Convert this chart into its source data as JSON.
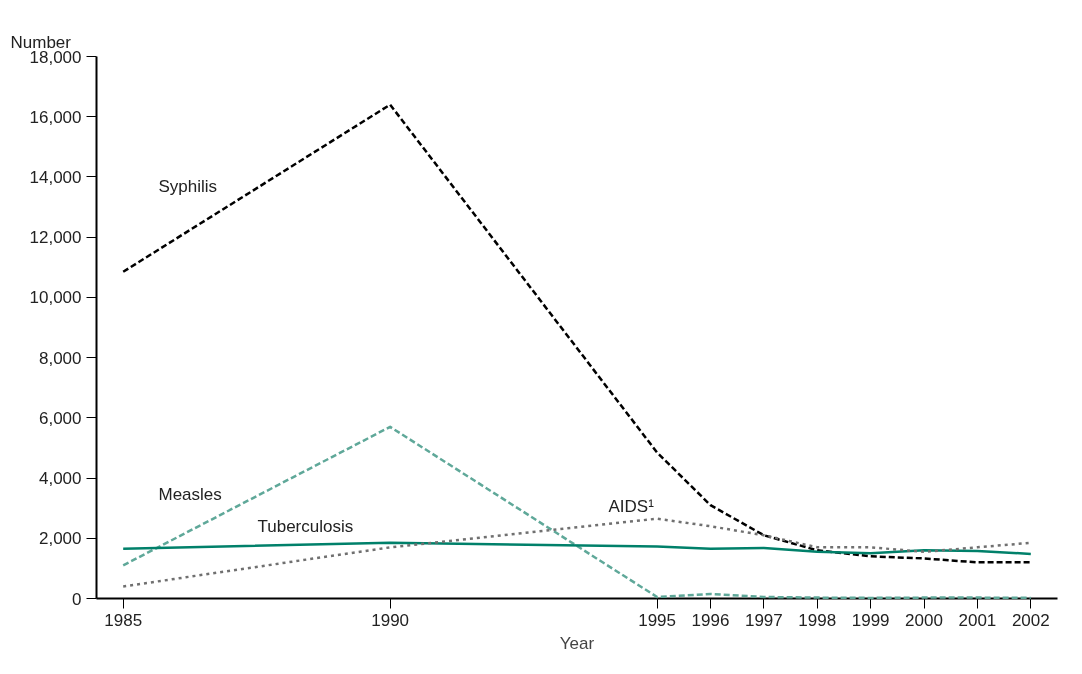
{
  "chart_data": {
    "type": "line",
    "xlabel": "Year",
    "ylabel": "Number",
    "x": [
      1985,
      1990,
      1995,
      1996,
      1997,
      1998,
      1999,
      2000,
      2001,
      2002
    ],
    "series": [
      {
        "color": "#000000",
        "line_style": "dashed",
        "values": [
          10850,
          16400,
          4850,
          3100,
          2100,
          1600,
          1400,
          1330,
          1200,
          1200
        ]
      },
      {
        "color": "#5fa899",
        "line_style": "dashed",
        "values": [
          1100,
          5700,
          50,
          150,
          50,
          30,
          20,
          30,
          30,
          20
        ]
      },
      {
        "color": "#00806a",
        "line_style": "solid",
        "values": [
          1650,
          1850,
          1730,
          1650,
          1680,
          1550,
          1500,
          1600,
          1580,
          1480
        ]
      },
      {
        "color": "#707070",
        "line_style": "dotted",
        "values": [
          400,
          1700,
          2650,
          2400,
          2100,
          1700,
          1700,
          1550,
          1700,
          1850
        ]
      }
    ],
    "annotations": [
      "Syphilis",
      "Measles",
      "Tuberculosis",
      "AIDS¹"
    ],
    "xlim": [
      1984.5,
      2002.5
    ],
    "ylim": [
      0,
      18000
    ],
    "xticks": [
      1985,
      1990,
      1995,
      1996,
      1997,
      1998,
      1999,
      2000,
      2001,
      2002
    ],
    "yticks": [
      {
        "value": 0,
        "label": "0"
      },
      {
        "value": 2000,
        "label": "2,000"
      },
      {
        "value": 4000,
        "label": "4,000"
      },
      {
        "value": 6000,
        "label": "6,000"
      },
      {
        "value": 8000,
        "label": "8,000"
      },
      {
        "value": 10000,
        "label": "10,000"
      },
      {
        "value": 12000,
        "label": "12,000"
      },
      {
        "value": 14000,
        "label": "14,000"
      },
      {
        "value": 16000,
        "label": "16,000"
      },
      {
        "value": 18000,
        "label": "18,000"
      }
    ],
    "grid": false,
    "marker": "none"
  }
}
